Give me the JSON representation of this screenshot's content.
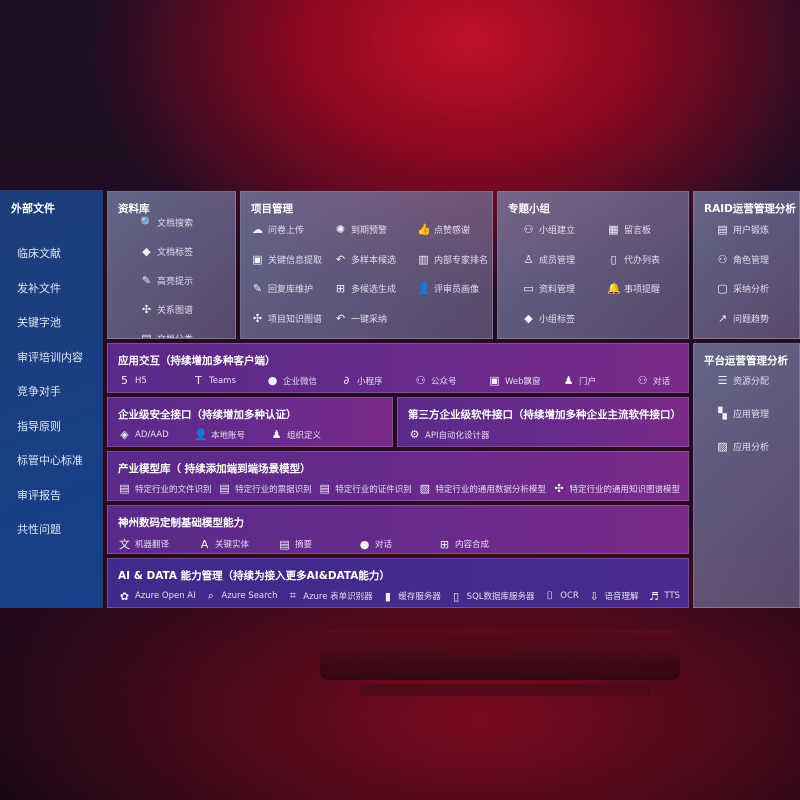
{
  "sidebar": {
    "title": "外部文件",
    "items": [
      "临床文献",
      "发补文件",
      "关键字池",
      "审评培训内容",
      "竞争对手",
      "指导原则",
      "标管中心标准",
      "审评报告",
      "共性问题"
    ]
  },
  "library": {
    "title": "资料库",
    "items": [
      {
        "icon": "doc-search-icon",
        "label": "文档搜索"
      },
      {
        "icon": "tag-icon",
        "label": "文档标签"
      },
      {
        "icon": "pen-icon",
        "label": "高亮提示"
      },
      {
        "icon": "graph-icon",
        "label": "关系图谱"
      },
      {
        "icon": "doc-copy-icon",
        "label": "文档分类"
      }
    ]
  },
  "project": {
    "title": "项目管理",
    "items": [
      {
        "icon": "cloud-upload-icon",
        "label": "问卷上传"
      },
      {
        "icon": "alarm-icon",
        "label": "到期预警"
      },
      {
        "icon": "thumbs-up-icon",
        "label": "点赞感谢"
      },
      {
        "icon": "window-icon",
        "label": "关键信息提取"
      },
      {
        "icon": "reply-icon",
        "label": "多样本候选"
      },
      {
        "icon": "ranking-icon",
        "label": "内部专家排名"
      },
      {
        "icon": "pen-icon",
        "label": "回复库维护"
      },
      {
        "icon": "puzzle-icon",
        "label": "多候选生成"
      },
      {
        "icon": "user-icon",
        "label": "评审员画像"
      },
      {
        "icon": "graph-icon",
        "label": "项目知识图谱"
      },
      {
        "icon": "reply-icon",
        "label": "一键采纳"
      }
    ]
  },
  "group": {
    "title": "专题小组",
    "items": [
      {
        "icon": "users-icon",
        "label": "小组建立"
      },
      {
        "icon": "bbs-icon",
        "label": "留言板"
      },
      {
        "icon": "user-add-icon",
        "label": "成员管理"
      },
      {
        "icon": "clipboard-icon",
        "label": "代办列表"
      },
      {
        "icon": "folder-icon",
        "label": "资料管理"
      },
      {
        "icon": "bell-icon",
        "label": "事项提醒"
      },
      {
        "icon": "tag-icon",
        "label": "小组标签"
      }
    ]
  },
  "raid": {
    "title": "RAID运营管理分析",
    "items": [
      {
        "icon": "id-card-icon",
        "label": "用户锻炼"
      },
      {
        "icon": "users-icon",
        "label": "角色管理"
      },
      {
        "icon": "qa-icon",
        "label": "采纳分析"
      },
      {
        "icon": "trend-icon",
        "label": "问题趋势"
      }
    ]
  },
  "platform": {
    "title": "平台运营管理分析",
    "items": [
      {
        "icon": "checklist-icon",
        "label": "资源分配"
      },
      {
        "icon": "apps-icon",
        "label": "应用管理"
      },
      {
        "icon": "chart-icon",
        "label": "应用分析"
      }
    ]
  },
  "app": {
    "title": "应用交互（持续增加多种客户端）",
    "items": [
      {
        "icon": "html5-icon",
        "label": "H5"
      },
      {
        "icon": "teams-icon",
        "label": "Teams"
      },
      {
        "icon": "wechat-work-icon",
        "label": "企业微信"
      },
      {
        "icon": "mini-program-icon",
        "label": "小程序"
      },
      {
        "icon": "users-icon",
        "label": "公众号"
      },
      {
        "icon": "window-icon",
        "label": "Web飘窗"
      },
      {
        "icon": "portal-icon",
        "label": "门户"
      },
      {
        "icon": "chat-users-icon",
        "label": "对话"
      }
    ]
  },
  "security": {
    "title": "企业级安全接口（持续增加多种认证）",
    "items": [
      {
        "icon": "diamond-icon",
        "label": "AD/AAD"
      },
      {
        "icon": "user-icon",
        "label": "本地账号"
      },
      {
        "icon": "org-icon",
        "label": "组织定义"
      }
    ]
  },
  "third": {
    "title": "第三方企业级软件接口（持续增加多种企业主流软件接口）",
    "items": [
      {
        "icon": "gear-icon",
        "label": "API自动化设计器"
      }
    ]
  },
  "industry": {
    "title": "产业模型库（ 持续添加端到端场景模型）",
    "items": [
      {
        "icon": "doc-icon",
        "label": "特定行业的文件识别"
      },
      {
        "icon": "receipt-icon",
        "label": "特定行业的票据识别"
      },
      {
        "icon": "id-card-icon",
        "label": "特定行业的证件识别"
      },
      {
        "icon": "image-icon",
        "label": "特定行业的通用数据分析模型"
      },
      {
        "icon": "graph-icon",
        "label": "特定行业的通用知识图谱模型"
      }
    ]
  },
  "custom": {
    "title": "神州数码定制基础模型能力",
    "items": [
      {
        "icon": "translate-icon",
        "label": "机器翻译"
      },
      {
        "icon": "entity-icon",
        "label": "关键实体"
      },
      {
        "icon": "doc-icon",
        "label": "摘要"
      },
      {
        "icon": "chat-icon",
        "label": "对话"
      },
      {
        "icon": "puzzle-icon",
        "label": "内容合成"
      }
    ]
  },
  "aidata": {
    "title": "AI & DATA 能力管理（持续为接入更多AI&DATA能力）",
    "items": [
      {
        "icon": "openai-icon",
        "label": "Azure Open AI"
      },
      {
        "icon": "search-doc-icon",
        "label": "Azure Search"
      },
      {
        "icon": "form-icon",
        "label": "Azure 表单识别器"
      },
      {
        "icon": "cache-icon",
        "label": "缓存服务器"
      },
      {
        "icon": "database-icon",
        "label": "SQL数据库服务器"
      },
      {
        "icon": "ocr-icon",
        "label": "OCR"
      },
      {
        "icon": "voice-icon",
        "label": "语音理解"
      },
      {
        "icon": "tts-icon",
        "label": "TTS"
      }
    ]
  }
}
